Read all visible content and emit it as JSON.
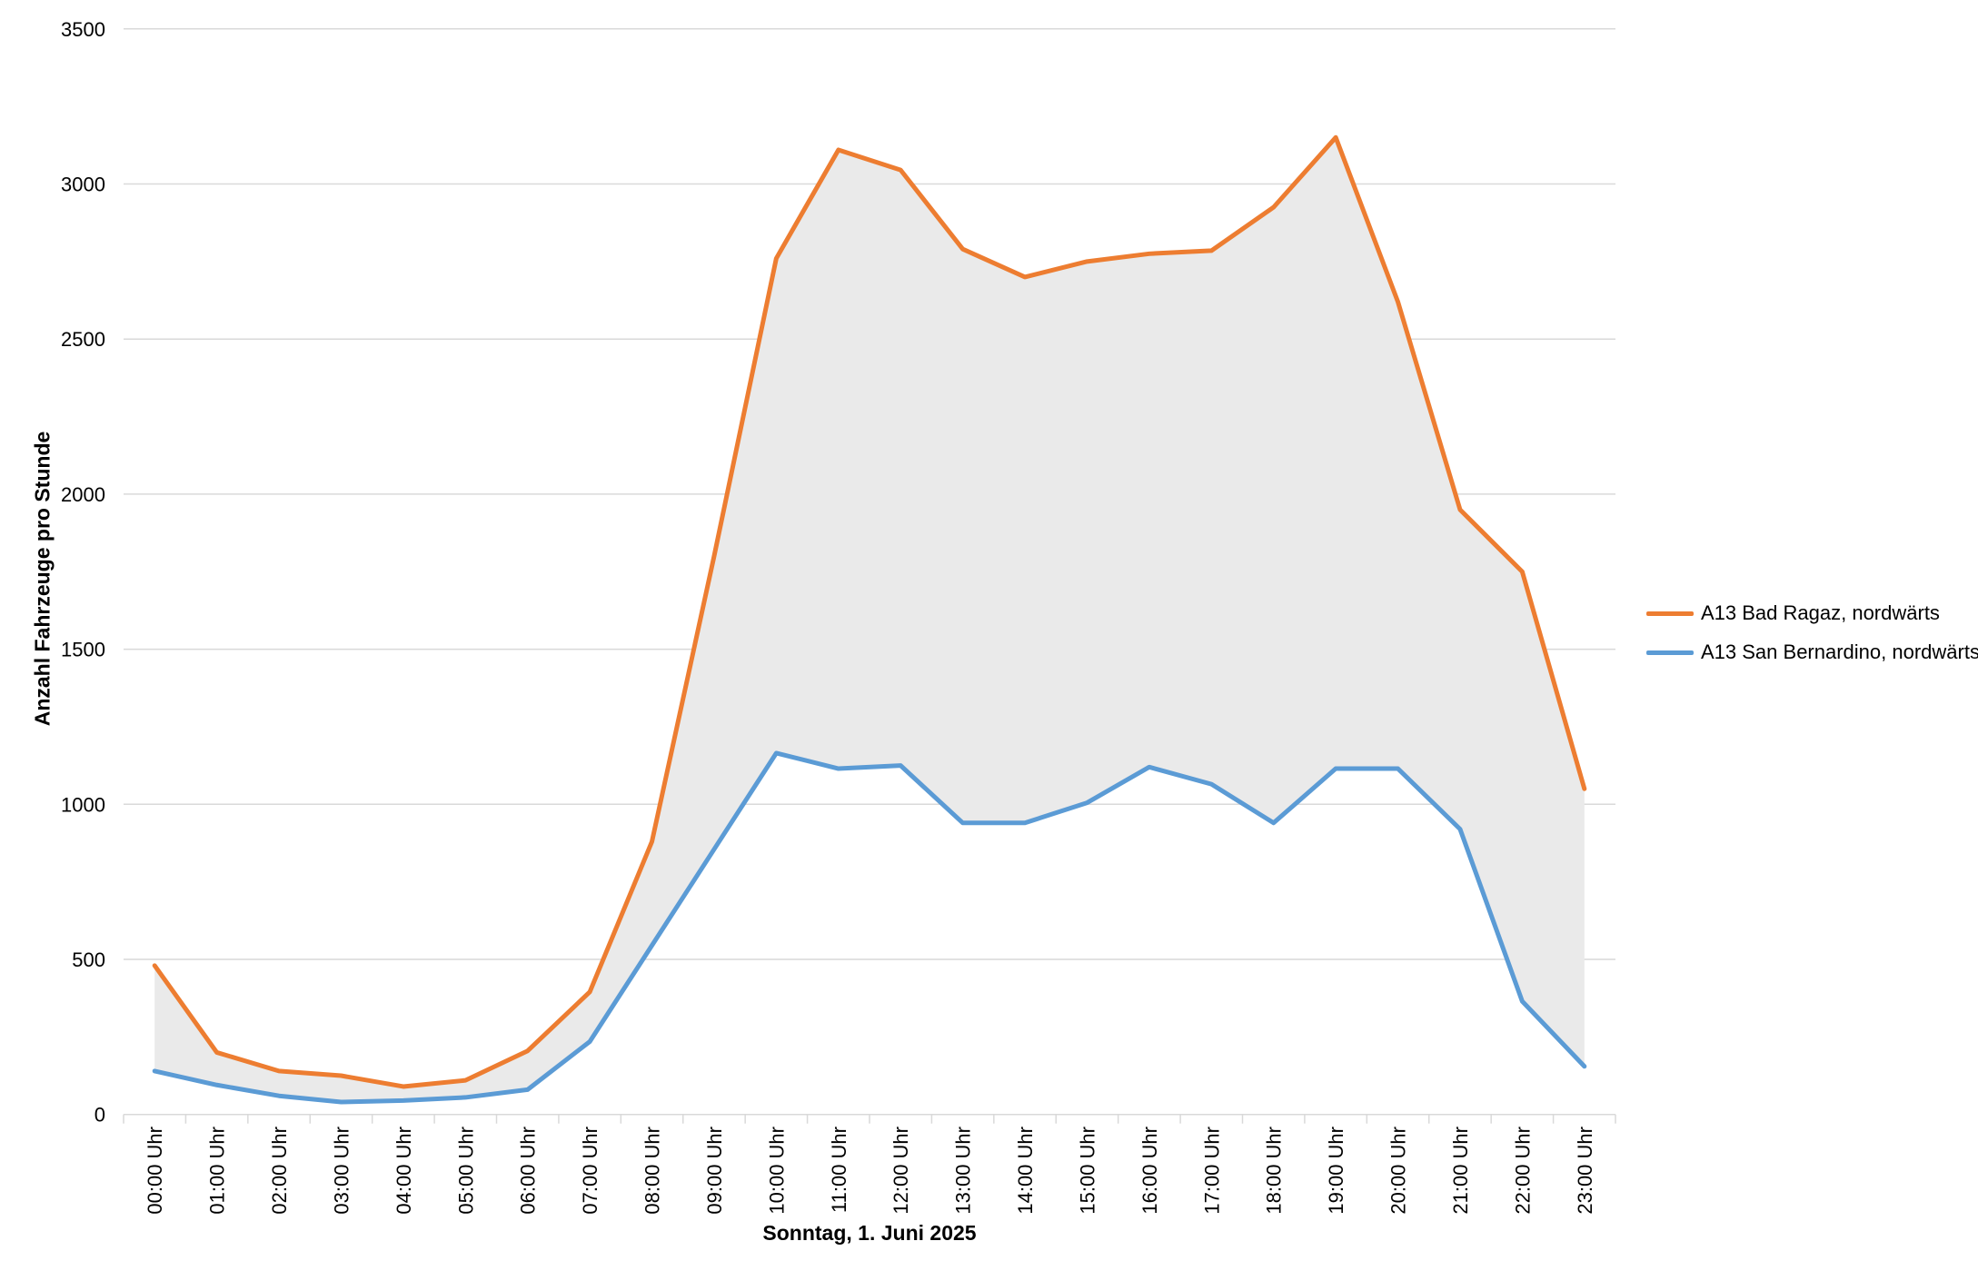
{
  "chart_data": {
    "type": "line",
    "title": "",
    "xlabel": "Sonntag, 1. Juni 2025",
    "ylabel": "Anzahl Fahrzeuge pro Stunde",
    "categories": [
      "00:00 Uhr",
      "01:00 Uhr",
      "02:00 Uhr",
      "03:00 Uhr",
      "04:00 Uhr",
      "05:00 Uhr",
      "06:00 Uhr",
      "07:00 Uhr",
      "08:00 Uhr",
      "09:00 Uhr",
      "10:00 Uhr",
      "11:00 Uhr",
      "12:00 Uhr",
      "13:00 Uhr",
      "14:00 Uhr",
      "15:00 Uhr",
      "16:00 Uhr",
      "17:00 Uhr",
      "18:00 Uhr",
      "19:00 Uhr",
      "20:00 Uhr",
      "21:00 Uhr",
      "22:00 Uhr",
      "23:00 Uhr"
    ],
    "series": [
      {
        "name": "A13 Bad Ragaz, nordwärts",
        "color": "#ED7D31",
        "values": [
          480,
          200,
          140,
          125,
          90,
          110,
          205,
          395,
          880,
          1800,
          2760,
          3110,
          3045,
          2790,
          2700,
          2750,
          2775,
          2785,
          2925,
          3150,
          2620,
          1950,
          1750,
          1050
        ]
      },
      {
        "name": "A13 San Bernardino, nordwärts",
        "color": "#5B9BD5",
        "values": [
          140,
          95,
          60,
          40,
          45,
          55,
          80,
          235,
          545,
          855,
          1165,
          1115,
          1125,
          940,
          940,
          1005,
          1120,
          1065,
          940,
          1115,
          1115,
          920,
          365,
          155
        ]
      }
    ],
    "band_fill_between_series": "#EAEAEA",
    "ylim": [
      0,
      3500
    ],
    "ytick_step": 500,
    "yticks": [
      "0",
      "500",
      "1000",
      "1500",
      "2000",
      "2500",
      "3000",
      "3500"
    ],
    "grid": true,
    "legend_position": "right"
  },
  "colors": {
    "gridline": "#D9D9D9",
    "tick_mark": "#D9D9D9",
    "text": "#000000",
    "background": "#FFFFFF"
  }
}
